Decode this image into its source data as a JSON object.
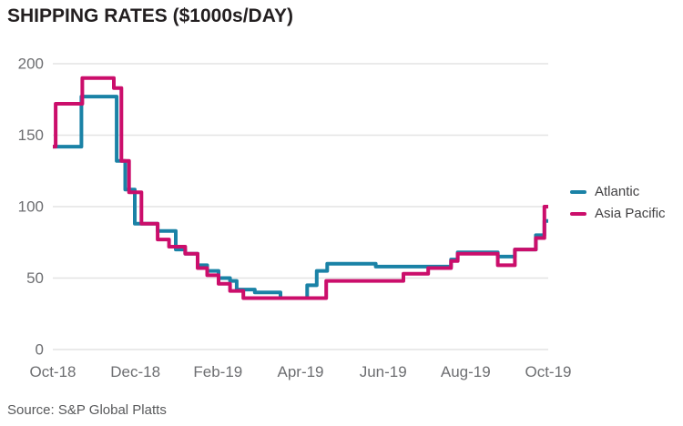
{
  "title": "SHIPPING RATES ($1000s/DAY)",
  "source": "Source: S&P Global Platts",
  "legend": {
    "items": [
      {
        "id": "atlantic",
        "label": "Atlantic",
        "color": "#1a82a6"
      },
      {
        "id": "asia-pacific",
        "label": "Asia Pacific",
        "color": "#cb0e6b"
      }
    ]
  },
  "chart_data": {
    "type": "line",
    "step": true,
    "title": "SHIPPING RATES ($1000s/DAY)",
    "xlabel": "",
    "ylabel": "$1000s/DAY",
    "x_unit": "weeks since Oct-2018",
    "xlim": [
      0,
      52
    ],
    "ylim": [
      0,
      200
    ],
    "y_ticks": [
      0,
      50,
      100,
      150,
      200
    ],
    "x_ticks": [
      {
        "label": "Oct-18",
        "week": 0
      },
      {
        "label": "Dec-18",
        "week": 8.67
      },
      {
        "label": "Feb-19",
        "week": 17.33
      },
      {
        "label": "Apr-19",
        "week": 26
      },
      {
        "label": "Jun-19",
        "week": 34.67
      },
      {
        "label": "Aug-19",
        "week": 43.33
      },
      {
        "label": "Oct-19",
        "week": 52
      }
    ],
    "grid": "horizontal",
    "grid_color": "#e3e3e3",
    "axis_text_color": "#6d6e71",
    "legend_position": "right",
    "series": [
      {
        "name": "Atlantic",
        "color": "#1a82a6",
        "points": [
          [
            0,
            142
          ],
          [
            3,
            177
          ],
          [
            6.7,
            132
          ],
          [
            7.6,
            112
          ],
          [
            8.6,
            88
          ],
          [
            11,
            83
          ],
          [
            12.9,
            70
          ],
          [
            13.9,
            67
          ],
          [
            15.2,
            59
          ],
          [
            16.2,
            55
          ],
          [
            17.4,
            50
          ],
          [
            18.6,
            48
          ],
          [
            19.3,
            42
          ],
          [
            21.2,
            40
          ],
          [
            23.9,
            36
          ],
          [
            26.7,
            45
          ],
          [
            27.7,
            55
          ],
          [
            28.8,
            60
          ],
          [
            33.9,
            58
          ],
          [
            41.8,
            63
          ],
          [
            42.5,
            68
          ],
          [
            46.7,
            65
          ],
          [
            48.5,
            70
          ],
          [
            50.7,
            80
          ],
          [
            51.6,
            90
          ],
          [
            52,
            90
          ]
        ]
      },
      {
        "name": "Asia Pacific",
        "color": "#cb0e6b",
        "points": [
          [
            0,
            142
          ],
          [
            0.3,
            172
          ],
          [
            3.1,
            190
          ],
          [
            6.4,
            183
          ],
          [
            7.2,
            132
          ],
          [
            8,
            110
          ],
          [
            9.3,
            88
          ],
          [
            11,
            77
          ],
          [
            12.2,
            72
          ],
          [
            13.9,
            67
          ],
          [
            15.2,
            57
          ],
          [
            16.2,
            52
          ],
          [
            17.4,
            46
          ],
          [
            18.6,
            41
          ],
          [
            20,
            36
          ],
          [
            28.7,
            48
          ],
          [
            36.8,
            53
          ],
          [
            39.4,
            57
          ],
          [
            41.8,
            62
          ],
          [
            42.5,
            67
          ],
          [
            46.7,
            59
          ],
          [
            48.5,
            70
          ],
          [
            50.7,
            78
          ],
          [
            51.6,
            100
          ],
          [
            52,
            100
          ]
        ]
      }
    ]
  }
}
